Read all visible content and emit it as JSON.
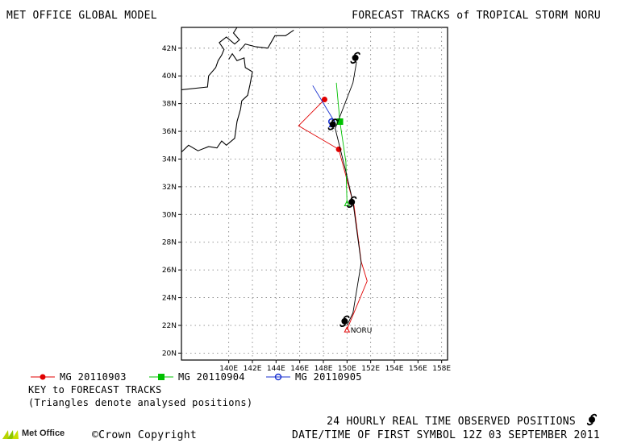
{
  "header": {
    "left_title": "MET OFFICE GLOBAL MODEL",
    "right_title": "FORECAST TRACKS of TROPICAL STORM NORU"
  },
  "chart_data": {
    "type": "map",
    "lat_range": [
      19.5,
      43.5
    ],
    "lon_range": [
      136.0,
      158.5
    ],
    "grid": true,
    "lat_ticks": [
      "20N",
      "22N",
      "24N",
      "26N",
      "28N",
      "30N",
      "32N",
      "34N",
      "36N",
      "38N",
      "40N",
      "42N"
    ],
    "lon_ticks": [
      "140E",
      "142E",
      "144E",
      "146E",
      "148E",
      "150E",
      "152E",
      "154E",
      "156E",
      "158E"
    ],
    "storm_label": "NORU",
    "observed_track": [
      [
        150.0,
        22.0
      ],
      [
        150.5,
        22.9
      ],
      [
        151.2,
        26.5
      ],
      [
        150.5,
        30.9
      ],
      [
        149.9,
        33.1
      ],
      [
        149.0,
        36.2
      ],
      [
        150.5,
        39.5
      ],
      [
        150.8,
        41.0
      ]
    ],
    "observed_symbols": [
      [
        149.8,
        22.3
      ],
      [
        150.4,
        30.9
      ],
      [
        148.8,
        36.5
      ],
      [
        150.7,
        41.3
      ]
    ],
    "forecasts": [
      {
        "name": "MG 20110903",
        "color": "#e00000",
        "marker": "circle",
        "points": [
          [
            150.0,
            21.7
          ],
          [
            151.7,
            25.2
          ],
          [
            151.2,
            26.6
          ],
          [
            150.6,
            30.6
          ],
          [
            149.3,
            34.7
          ],
          [
            145.9,
            36.4
          ],
          [
            148.1,
            38.3
          ]
        ],
        "marker_point": [
          [
            149.3,
            34.7
          ],
          [
            148.1,
            38.3
          ]
        ]
      },
      {
        "name": "MG 20110904",
        "color": "#00c000",
        "marker": "square",
        "points": [
          [
            150.0,
            30.8
          ],
          [
            149.9,
            33.8
          ],
          [
            149.4,
            36.7
          ],
          [
            149.1,
            39.5
          ]
        ],
        "marker_point": [
          [
            149.4,
            36.7
          ]
        ]
      },
      {
        "name": "MG 20110905",
        "color": "#1830d0",
        "marker": "circle-open",
        "points": [
          [
            148.7,
            36.5
          ],
          [
            148.8,
            36.9
          ],
          [
            147.1,
            39.3
          ]
        ],
        "marker_point": [
          [
            148.7,
            36.7
          ]
        ]
      }
    ],
    "coastline": [
      [
        136,
        39.0
      ],
      [
        138.2,
        39.2
      ],
      [
        138.3,
        40.0
      ],
      [
        138.9,
        40.6
      ],
      [
        139.1,
        41.1
      ],
      [
        139.4,
        41.5
      ],
      [
        139.6,
        41.9
      ],
      [
        139.2,
        42.4
      ],
      [
        139.8,
        42.8
      ],
      [
        140.5,
        42.3
      ],
      [
        140.9,
        42.6
      ],
      [
        140.4,
        43.1
      ],
      [
        140.7,
        43.5
      ]
    ],
    "coastline_honshu": [
      [
        136,
        34.5
      ],
      [
        136.6,
        35.0
      ],
      [
        137.4,
        34.6
      ],
      [
        138.3,
        34.9
      ],
      [
        139.0,
        34.8
      ],
      [
        139.4,
        35.3
      ],
      [
        139.8,
        35.0
      ],
      [
        140.5,
        35.5
      ],
      [
        140.7,
        36.7
      ],
      [
        141.0,
        37.6
      ],
      [
        141.1,
        38.2
      ],
      [
        141.6,
        38.6
      ],
      [
        141.8,
        39.4
      ],
      [
        142.0,
        40.3
      ],
      [
        141.4,
        40.6
      ],
      [
        141.3,
        41.3
      ],
      [
        140.7,
        41.1
      ],
      [
        140.3,
        41.6
      ],
      [
        140.0,
        41.2
      ]
    ],
    "coastline_hokkaido_south": [
      [
        140.9,
        41.8
      ],
      [
        141.4,
        42.3
      ],
      [
        142.3,
        42.1
      ],
      [
        143.3,
        42.0
      ],
      [
        143.9,
        42.9
      ],
      [
        144.8,
        42.9
      ],
      [
        145.5,
        43.3
      ]
    ],
    "xlabel": "",
    "ylabel": ""
  },
  "legend": {
    "title": "KEY to FORECAST TRACKS",
    "note": "(Triangles denote analysed positions)"
  },
  "footer": {
    "logo_text": "Met Office",
    "copyright": "©Crown Copyright",
    "observed_label": "24 HOURLY REAL TIME OBSERVED POSITIONS",
    "first_symbol": "DATE/TIME OF FIRST SYMBOL 12Z 03 SEPTEMBER 2011"
  },
  "colors": {
    "frame": "#000000",
    "grid": "#7a7a7a",
    "land": "#000000"
  }
}
